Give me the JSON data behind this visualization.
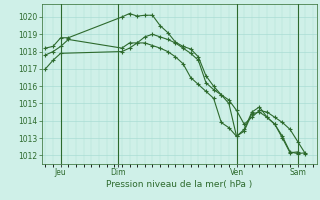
{
  "title": "Pression niveau de la mer( hPa )",
  "bg_color": "#cff0e8",
  "grid_color": "#aaddd4",
  "line_color": "#2d6a2d",
  "ylim": [
    1011.5,
    1020.75
  ],
  "yticks": [
    1012,
    1013,
    1014,
    1015,
    1016,
    1017,
    1018,
    1019,
    1020
  ],
  "day_labels": [
    "Jeu",
    "Dim",
    "Ven",
    "Sam"
  ],
  "series1_x": [
    0,
    1,
    2,
    3,
    10,
    11,
    12,
    13,
    14,
    15,
    16,
    17,
    18,
    19,
    20,
    21,
    22,
    23,
    24,
    25,
    26,
    27,
    28,
    29,
    30,
    31,
    32,
    33,
    34
  ],
  "series1_y": [
    1018.2,
    1018.3,
    1018.8,
    1018.8,
    1020.0,
    1020.2,
    1020.05,
    1020.1,
    1020.1,
    1019.5,
    1019.1,
    1018.55,
    1018.3,
    1018.15,
    1017.7,
    1016.6,
    1016.0,
    1015.5,
    1015.0,
    1013.1,
    1013.5,
    1014.5,
    1014.8,
    1014.2,
    1013.8,
    1013.1,
    1012.2,
    1012.1,
    1012.15
  ],
  "series2_x": [
    0,
    1,
    2,
    10,
    11,
    12,
    13,
    14,
    15,
    16,
    17,
    18,
    19,
    20,
    21,
    22,
    23,
    24,
    25,
    26,
    27,
    28,
    29,
    30,
    31,
    32,
    33,
    34
  ],
  "series2_y": [
    1017.0,
    1017.5,
    1017.9,
    1018.0,
    1018.2,
    1018.5,
    1018.85,
    1019.0,
    1018.85,
    1018.7,
    1018.5,
    1018.2,
    1017.9,
    1017.5,
    1016.2,
    1015.8,
    1015.5,
    1015.2,
    1014.6,
    1013.8,
    1014.2,
    1014.6,
    1014.5,
    1014.2,
    1013.9,
    1013.5,
    1012.8,
    1012.1
  ],
  "series3_x": [
    0,
    1,
    2,
    3,
    10,
    11,
    12,
    13,
    14,
    15,
    16,
    17,
    18,
    19,
    20,
    21,
    22,
    23,
    24,
    25,
    26,
    27,
    28,
    29,
    30,
    31,
    32,
    33
  ],
  "series3_y": [
    1017.8,
    1018.0,
    1018.3,
    1018.7,
    1018.2,
    1018.5,
    1018.5,
    1018.5,
    1018.35,
    1018.2,
    1018.0,
    1017.7,
    1017.3,
    1016.5,
    1016.1,
    1015.7,
    1015.3,
    1013.9,
    1013.6,
    1013.1,
    1013.4,
    1014.4,
    1014.5,
    1014.2,
    1013.8,
    1013.0,
    1012.15,
    1012.2
  ],
  "xlim": [
    -0.5,
    35.5
  ],
  "vline_positions": [
    2.0,
    9.5,
    25.0,
    33.0
  ]
}
